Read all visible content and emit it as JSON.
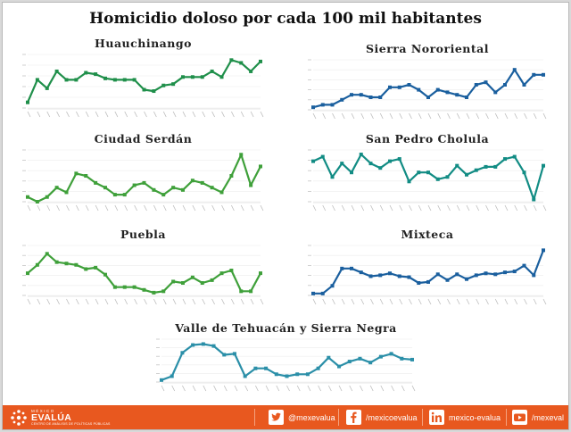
{
  "title": "Homicidio doloso por cada 100 mil habitantes",
  "footer": {
    "logo": {
      "small": "MÉXICO",
      "big": "EVALÚA",
      "sub": "CENTRO DE ANÁLISIS DE POLÍTICAS PÚBLICAS"
    },
    "links": [
      {
        "icon": "twitter-icon",
        "text": "@mexevalua"
      },
      {
        "icon": "facebook-icon",
        "text": "/mexicoevalua"
      },
      {
        "icon": "linkedin-icon",
        "text": "mexico-evalua"
      },
      {
        "icon": "youtube-icon",
        "text": "/mexeval"
      }
    ],
    "colors": {
      "bar": "#e8581f",
      "text": "#ffffff"
    }
  },
  "chart_data": [
    {
      "type": "line",
      "title": "Huauchinango",
      "color": "#1f8f4a",
      "values": [
        1,
        9,
        6,
        12,
        9,
        9,
        11.5,
        11,
        9.5,
        9,
        9,
        9,
        5.5,
        5,
        7,
        7.5,
        10,
        10,
        10,
        12,
        10,
        16,
        15,
        12,
        15.5
      ],
      "ylim": [
        -1,
        18
      ]
    },
    {
      "type": "line",
      "title": "Sierra Nororiental",
      "color": "#1a5f9e",
      "values": [
        7.5,
        8,
        8,
        9,
        10,
        10,
        9.5,
        9.5,
        11.5,
        11.5,
        12,
        11,
        9.5,
        11,
        10.5,
        10,
        9.5,
        12,
        12.5,
        10.5,
        12,
        15,
        12,
        14,
        14
      ],
      "ylim": [
        7,
        17
      ]
    },
    {
      "type": "line",
      "title": "Ciudad Serdán",
      "color": "#3fa03a",
      "values": [
        1,
        0,
        1,
        3,
        2,
        6,
        5.5,
        4,
        3,
        1.5,
        1.5,
        3.5,
        4,
        2.5,
        1.5,
        3,
        2.5,
        4.5,
        4,
        3,
        2,
        5.5,
        10,
        3.5,
        7.5
      ],
      "ylim": [
        0,
        11
      ]
    },
    {
      "type": "line",
      "title": "San Pedro Cholula",
      "color": "#128c84",
      "values": [
        15,
        17,
        8,
        14,
        10,
        18,
        14,
        12,
        15,
        16,
        6,
        10,
        10,
        7,
        8,
        13,
        9,
        11,
        12.5,
        12.5,
        16,
        17,
        10,
        -2,
        13
      ],
      "ylim": [
        -3,
        20
      ]
    },
    {
      "type": "line",
      "title": "Puebla",
      "color": "#3fa03a",
      "values": [
        8,
        11,
        15,
        12,
        11.5,
        11,
        9.5,
        10,
        7.5,
        3,
        3,
        3,
        2,
        1,
        1.5,
        5,
        4.5,
        6.5,
        4.5,
        5.5,
        8,
        9,
        1.5,
        1.5,
        8
      ],
      "ylim": [
        0,
        18
      ]
    },
    {
      "type": "line",
      "title": "Mixteca",
      "color": "#1a5f9e",
      "values": [
        0,
        0,
        4,
        13,
        13,
        11,
        9,
        9.5,
        10.5,
        9,
        8.5,
        5.5,
        6,
        10,
        7,
        10,
        7.5,
        9.5,
        10.5,
        10,
        11,
        11.5,
        14.5,
        9.5,
        22.5
      ],
      "ylim": [
        -1,
        25
      ]
    },
    {
      "type": "line",
      "title": "Valle de Tehuacán y Sierra Negra",
      "color": "#2b8fa8",
      "values": [
        1,
        3,
        15,
        19,
        19.5,
        18.5,
        14,
        14.5,
        3,
        7,
        7,
        4,
        3,
        4,
        4,
        7,
        12.5,
        8,
        10.5,
        12,
        10,
        13,
        14.5,
        12,
        11.5
      ],
      "ylim": [
        0,
        22
      ]
    }
  ]
}
